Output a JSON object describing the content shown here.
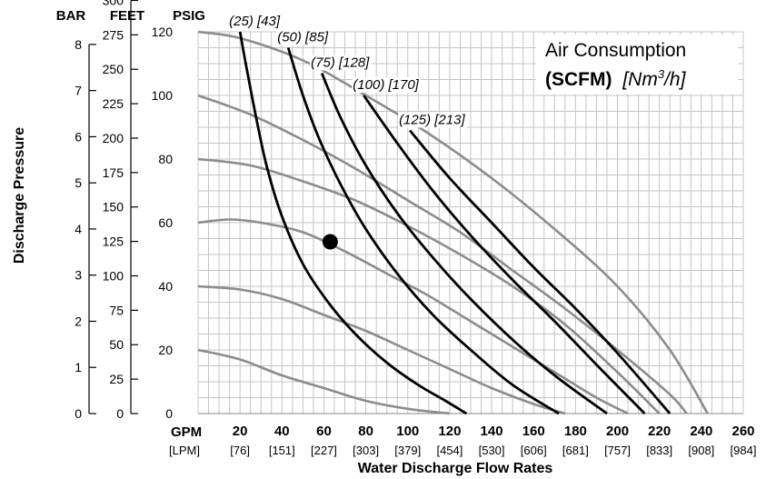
{
  "chart_data": {
    "type": "line",
    "title": "",
    "legend": {
      "title": "Air Consumption",
      "units_bold": "(SCFM)",
      "units_italic_pre": "[Nm",
      "units_italic_sup": "3",
      "units_italic_post": "/h]"
    },
    "xlabel": "Water Discharge Flow Rates",
    "ylabel": "Discharge Pressure",
    "x_unit_primary": "GPM",
    "x_unit_secondary": "[LPM]",
    "xlim": [
      0,
      260
    ],
    "ylim": [
      0,
      120
    ],
    "x_ticks": [
      {
        "gpm": "20",
        "lpm": "[76]"
      },
      {
        "gpm": "40",
        "lpm": "[151]"
      },
      {
        "gpm": "60",
        "lpm": "[227]"
      },
      {
        "gpm": "80",
        "lpm": "[303]"
      },
      {
        "gpm": "100",
        "lpm": "[379]"
      },
      {
        "gpm": "120",
        "lpm": "[454]"
      },
      {
        "gpm": "140",
        "lpm": "[530]"
      },
      {
        "gpm": "160",
        "lpm": "[606]"
      },
      {
        "gpm": "180",
        "lpm": "[681]"
      },
      {
        "gpm": "200",
        "lpm": "[757]"
      },
      {
        "gpm": "220",
        "lpm": "[833]"
      },
      {
        "gpm": "240",
        "lpm": "[908]"
      },
      {
        "gpm": "260",
        "lpm": "[984]"
      }
    ],
    "y_axes": [
      {
        "header": "BAR",
        "ticks": [
          "0",
          "1",
          "2",
          "3",
          "4",
          "5",
          "6",
          "7",
          "8"
        ],
        "values": [
          0,
          1,
          2,
          3,
          4,
          5,
          6,
          7,
          8
        ]
      },
      {
        "header": "FEET",
        "ticks": [
          "0",
          "25",
          "50",
          "75",
          "100",
          "125",
          "150",
          "175",
          "200",
          "225",
          "250",
          "275",
          "300"
        ],
        "values": [
          0,
          25,
          50,
          75,
          100,
          125,
          150,
          175,
          200,
          225,
          250,
          275,
          300
        ]
      },
      {
        "header": "PSIG",
        "ticks": [
          "0",
          "20",
          "40",
          "60",
          "80",
          "100",
          "120"
        ],
        "values": [
          0,
          20,
          40,
          60,
          80,
          100,
          120
        ]
      }
    ],
    "air_pressure_curves": [
      {
        "x": [
          0,
          20,
          40,
          60,
          80,
          100,
          120
        ],
        "y": [
          20,
          17,
          12,
          8,
          4,
          1.5,
          0
        ]
      },
      {
        "x": [
          0,
          20,
          40,
          60,
          80,
          100,
          120,
          140,
          160,
          175
        ],
        "y": [
          40,
          39,
          36,
          31,
          26,
          20,
          14,
          8,
          3,
          0
        ]
      },
      {
        "x": [
          0,
          15,
          30,
          50,
          70,
          90,
          110,
          130,
          150,
          170,
          190,
          205
        ],
        "y": [
          60,
          61,
          60,
          57,
          51,
          44,
          37,
          29,
          21,
          13,
          5,
          0
        ]
      },
      {
        "x": [
          0,
          25,
          50,
          75,
          100,
          125,
          150,
          175,
          200,
          220
        ],
        "y": [
          80,
          78,
          73,
          67,
          59,
          50,
          40,
          28,
          13,
          0
        ]
      },
      {
        "x": [
          0,
          25,
          50,
          75,
          100,
          125,
          150,
          175,
          200,
          225,
          233
        ],
        "y": [
          100,
          94,
          86,
          77,
          67,
          57,
          45,
          33,
          20,
          6,
          0
        ]
      },
      {
        "x": [
          0,
          20,
          50,
          80,
          110,
          140,
          170,
          200,
          225,
          243
        ],
        "y": [
          120,
          118,
          111,
          100,
          88,
          74,
          58,
          40,
          20,
          0
        ]
      }
    ],
    "air_consumption_curves": [
      {
        "name": "(25) [43]",
        "x": [
          20,
          23,
          28,
          33,
          40,
          50,
          62,
          75,
          90,
          105,
          118,
          128
        ],
        "y": [
          120,
          109,
          92,
          77,
          62,
          47,
          35,
          25,
          16,
          9,
          4,
          0
        ]
      },
      {
        "name": "(50) [85]",
        "x": [
          43,
          50,
          58,
          68,
          80,
          95,
          112,
          130,
          150,
          172
        ],
        "y": [
          115,
          100,
          86,
          72,
          58,
          44,
          31,
          20,
          9,
          0
        ]
      },
      {
        "name": "(75) [128]",
        "x": [
          59,
          68,
          80,
          95,
          112,
          130,
          152,
          172,
          195
        ],
        "y": [
          107,
          93,
          78,
          63,
          49,
          36,
          22,
          11,
          0
        ]
      },
      {
        "name": "(100) [170]",
        "x": [
          79,
          95,
          112,
          130,
          150,
          170,
          192,
          213
        ],
        "y": [
          100,
          85,
          70,
          56,
          42,
          29,
          14,
          0
        ]
      },
      {
        "name": "(125) [213]",
        "x": [
          101,
          120,
          140,
          160,
          180,
          200,
          225
        ],
        "y": [
          89,
          74,
          60,
          46,
          33,
          19,
          0
        ]
      }
    ],
    "marker": {
      "x": 63,
      "y": 54
    }
  }
}
